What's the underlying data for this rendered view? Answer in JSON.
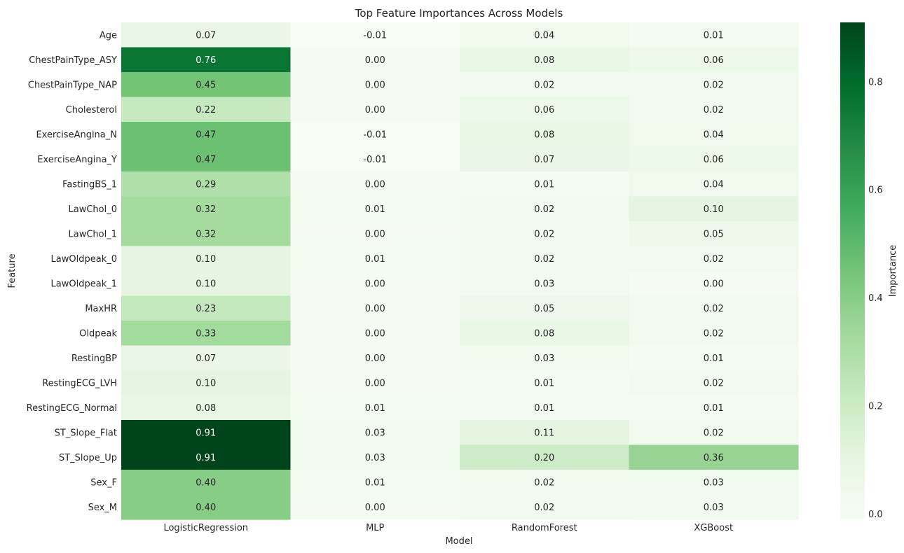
{
  "chart_data": {
    "type": "heatmap",
    "title": "Top Feature Importances Across Models",
    "xlabel": "Model",
    "ylabel": "Feature",
    "columns": [
      "LogisticRegression",
      "MLP",
      "RandomForest",
      "XGBoost"
    ],
    "rows": [
      "Age",
      "ChestPainType_ASY",
      "ChestPainType_NAP",
      "Cholesterol",
      "ExerciseAngina_N",
      "ExerciseAngina_Y",
      "FastingBS_1",
      "LawChol_0",
      "LawChol_1",
      "LawOldpeak_0",
      "LawOldpeak_1",
      "MaxHR",
      "Oldpeak",
      "RestingBP",
      "RestingECG_LVH",
      "RestingECG_Normal",
      "ST_Slope_Flat",
      "ST_Slope_Up",
      "Sex_F",
      "Sex_M"
    ],
    "values": [
      [
        0.07,
        -0.01,
        0.04,
        0.01
      ],
      [
        0.76,
        -0.0,
        0.08,
        0.06
      ],
      [
        0.45,
        -0.0,
        0.02,
        0.02
      ],
      [
        0.22,
        0.0,
        0.06,
        0.02
      ],
      [
        0.47,
        -0.01,
        0.08,
        0.04
      ],
      [
        0.47,
        -0.01,
        0.07,
        0.06
      ],
      [
        0.29,
        -0.0,
        0.01,
        0.04
      ],
      [
        0.32,
        0.01,
        0.02,
        0.1
      ],
      [
        0.32,
        0.0,
        0.02,
        0.05
      ],
      [
        0.1,
        0.01,
        0.02,
        0.02
      ],
      [
        0.1,
        0.0,
        0.03,
        0.0
      ],
      [
        0.23,
        -0.0,
        0.05,
        0.02
      ],
      [
        0.33,
        0.0,
        0.08,
        0.02
      ],
      [
        0.07,
        0.0,
        0.03,
        0.01
      ],
      [
        0.1,
        0.0,
        0.01,
        0.02
      ],
      [
        0.08,
        0.01,
        0.01,
        0.01
      ],
      [
        0.91,
        0.03,
        0.11,
        0.02
      ],
      [
        0.91,
        0.03,
        0.2,
        0.36
      ],
      [
        0.4,
        0.01,
        0.02,
        0.03
      ],
      [
        0.4,
        -0.0,
        0.02,
        0.03
      ]
    ],
    "value_format": "2 decimals",
    "colormap": "Greens",
    "colorbar": {
      "label": "Importance",
      "range": [
        -0.01,
        0.91
      ],
      "ticks": [
        "0.0",
        "0.2",
        "0.4",
        "0.6",
        "0.8"
      ]
    },
    "grid": false,
    "colors": {
      "low": "#f7fcf5",
      "high": "#00441b",
      "label_light": "#ffffff",
      "label_dark": "#262626"
    }
  }
}
